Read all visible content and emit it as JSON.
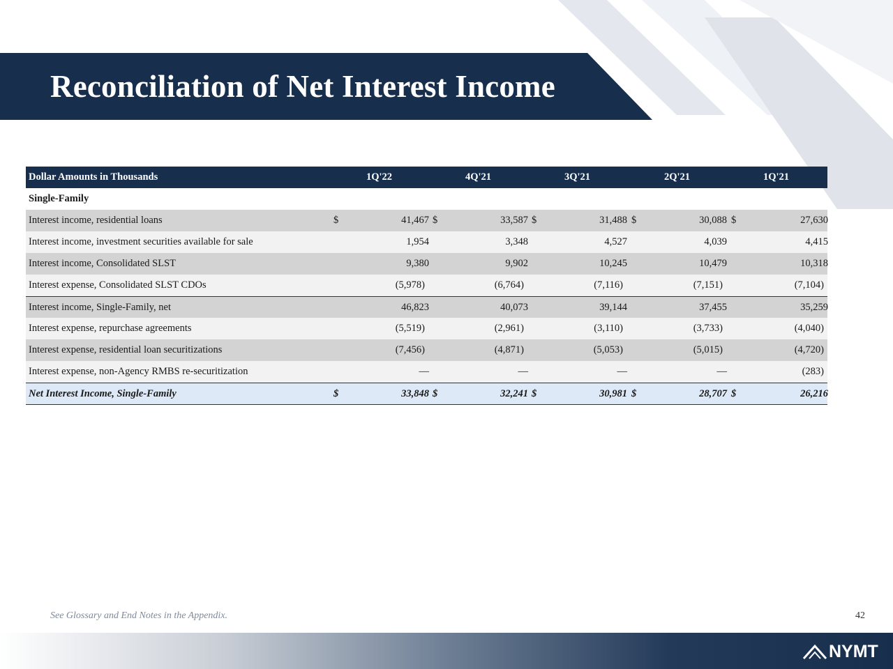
{
  "title": "Reconciliation of Net Interest Income",
  "table": {
    "header_label": "Dollar Amounts in Thousands",
    "periods": [
      "1Q'22",
      "4Q'21",
      "3Q'21",
      "2Q'21",
      "1Q'21"
    ],
    "section": "Single-Family",
    "currency_symbol": "$",
    "dash": "—",
    "rows": [
      {
        "label": "Interest income, residential loans",
        "values": [
          "41,467",
          "33,587",
          "31,488",
          "30,088",
          "27,630"
        ]
      },
      {
        "label": "Interest income, investment securities available for sale",
        "values": [
          "1,954",
          "3,348",
          "4,527",
          "4,039",
          "4,415"
        ]
      },
      {
        "label": "Interest income, Consolidated SLST",
        "values": [
          "9,380",
          "9,902",
          "10,245",
          "10,479",
          "10,318"
        ]
      },
      {
        "label": "Interest expense, Consolidated SLST CDOs",
        "values": [
          "(5,978)",
          "(6,764)",
          "(7,116)",
          "(7,151)",
          "(7,104)"
        ]
      },
      {
        "label": "Interest income, Single-Family, net",
        "values": [
          "46,823",
          "40,073",
          "39,144",
          "37,455",
          "35,259"
        ]
      },
      {
        "label": "Interest expense, repurchase agreements",
        "values": [
          "(5,519)",
          "(2,961)",
          "(3,110)",
          "(3,733)",
          "(4,040)"
        ]
      },
      {
        "label": "Interest expense, residential loan securitizations",
        "values": [
          "(7,456)",
          "(4,871)",
          "(5,053)",
          "(5,015)",
          "(4,720)"
        ]
      },
      {
        "label": "Interest expense, non-Agency RMBS re-securitization",
        "values": [
          "—",
          "—",
          "—",
          "—",
          "(283)"
        ]
      }
    ],
    "total": {
      "label": "Net Interest Income, Single-Family",
      "values": [
        "33,848",
        "32,241",
        "30,981",
        "28,707",
        "26,216"
      ]
    }
  },
  "footnote": "See Glossary and End Notes in the Appendix.",
  "page_number": "42",
  "logo_text": "NYMT",
  "colors": {
    "navy": "#172f4d",
    "shade": "#d3d3d3",
    "light": "#f2f2f2",
    "total": "#dde9f7"
  }
}
